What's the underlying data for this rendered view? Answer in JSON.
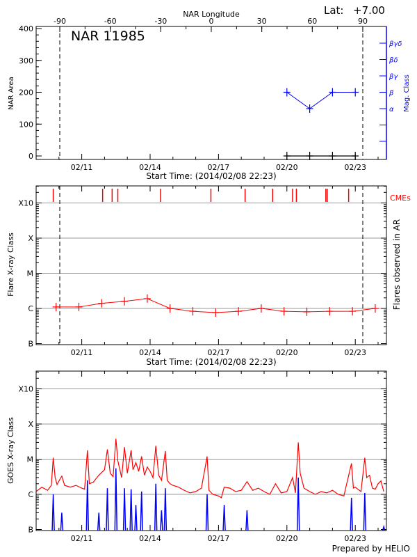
{
  "header": {
    "lat_label": "Lat:",
    "lat_value": "+7.00",
    "footer": "Prepared by HELIO"
  },
  "colors": {
    "area": "#000000",
    "mag_class": "#0000ff",
    "flares": "#ff0000",
    "cme": "#ff0000",
    "goes_long": "#ff0000",
    "goes_short": "#0000ff",
    "grid": "#999999"
  },
  "chart_data": [
    {
      "type": "line",
      "title": "NAR 11985",
      "top_axis_label": "NAR Longitude",
      "top_ticks": [
        -90,
        -60,
        -30,
        0,
        30,
        60,
        90
      ],
      "xlabel": "Start Time: (2014/02/08 22:23)",
      "x_ticks": [
        "02/11",
        "02/14",
        "02/17",
        "02/20",
        "02/23"
      ],
      "xlim": [
        "02/09 00:00",
        "02/24 06:30"
      ],
      "limb_markers_longitude": [
        -90,
        90
      ],
      "ylabel": "NAR Area",
      "ylim": [
        -11,
        406
      ],
      "y_ticks": [
        0,
        100,
        200,
        300,
        400
      ],
      "y2label": "Mag. Class",
      "y2_ticks": [
        "",
        "",
        "α",
        "β",
        "βγ",
        "βδ",
        "βγδ"
      ],
      "series": [
        {
          "name": "NAR Area",
          "x": [
            "02/20 00:00",
            "02/21 00:00",
            "02/22 00:00",
            "02/23 00:00"
          ],
          "values": [
            0,
            0,
            0,
            0
          ]
        },
        {
          "name": "Mag. Class",
          "x": [
            "02/20 00:00",
            "02/21 00:00",
            "02/22 00:00",
            "02/23 00:00"
          ],
          "values": [
            "β",
            "α",
            "β",
            "β"
          ]
        }
      ]
    },
    {
      "type": "line",
      "xlabel": "Start Time: (2014/02/08 22:23)",
      "x_ticks": [
        "02/11",
        "02/14",
        "02/17",
        "02/20",
        "02/23"
      ],
      "ylabel": "Flare X-ray Class",
      "y2label": "Flares observed in AR",
      "y_scale": "log",
      "y_ticks": [
        "B",
        "C",
        "M",
        "X",
        "X10"
      ],
      "grid": true,
      "cme_label": "CMEs",
      "cmes": [
        "02/09 18:00",
        "02/11 22:00",
        "02/12 08:00",
        "02/12 14:00",
        "02/14 11:00",
        "02/16 16:00",
        "02/18 04:00",
        "02/19 09:00",
        "02/20 06:00",
        "02/20 10:00",
        "02/21 17:00",
        "02/21 18:30",
        "02/22 17:00"
      ],
      "flares": {
        "x": [
          "02/09 21:00",
          "02/10 21:00",
          "02/11 21:00",
          "02/12 21:00",
          "02/13 21:00",
          "02/14 21:00",
          "02/15 21:00",
          "02/16 21:00",
          "02/17 21:00",
          "02/18 21:00",
          "02/19 21:00",
          "02/20 21:00",
          "02/21 21:00",
          "02/22 21:00",
          "02/23 21:00"
        ],
        "values": [
          "C1.1",
          "C1.1",
          "C1.4",
          "C1.6",
          "C1.9",
          "C1.0",
          "B8.3",
          "B7.6",
          "B8.3",
          "C1.0",
          "B8.3",
          "B8.0",
          "B8.3",
          "B8.3",
          "C1.0"
        ]
      }
    },
    {
      "type": "line",
      "x_ticks": [
        "02/11",
        "02/14",
        "02/17",
        "02/20",
        "02/23"
      ],
      "ylabel": "GOES X-ray Class",
      "y_scale": "log",
      "y_ticks": [
        "B",
        "C",
        "M",
        "X",
        "X10"
      ],
      "grid": true,
      "units": "flux in C-class units (1 = C1.0)",
      "series": [
        {
          "color": "#ff0000",
          "points": [
            [
              "02/09 00:00",
              1.2
            ],
            [
              "02/09 06:00",
              1.6
            ],
            [
              "02/09 12:00",
              1.3
            ],
            [
              "02/09 16:00",
              1.8
            ],
            [
              "02/09 18:00",
              11
            ],
            [
              "02/09 20:00",
              3.0
            ],
            [
              "02/09 22:00",
              1.9
            ],
            [
              "02/10 00:00",
              2.4
            ],
            [
              "02/10 03:00",
              3.3
            ],
            [
              "02/10 06:00",
              1.8
            ],
            [
              "02/10 12:00",
              1.6
            ],
            [
              "02/10 18:00",
              1.8
            ],
            [
              "02/11 00:00",
              1.5
            ],
            [
              "02/11 03:00",
              1.4
            ],
            [
              "02/11 06:00",
              18
            ],
            [
              "02/11 08:00",
              2.0
            ],
            [
              "02/11 12:00",
              2.2
            ],
            [
              "02/11 18:00",
              3.5
            ],
            [
              "02/12 00:00",
              5.0
            ],
            [
              "02/12 03:00",
              19
            ],
            [
              "02/12 06:00",
              4.0
            ],
            [
              "02/12 09:00",
              3.2
            ],
            [
              "02/12 12:00",
              38
            ],
            [
              "02/12 14:00",
              9.0
            ],
            [
              "02/12 18:00",
              3.0
            ],
            [
              "02/12 21:00",
              22
            ],
            [
              "02/13 00:00",
              4.0
            ],
            [
              "02/13 04:00",
              18
            ],
            [
              "02/13 06:00",
              5.0
            ],
            [
              "02/13 09:00",
              8.0
            ],
            [
              "02/13 12:00",
              4.5
            ],
            [
              "02/13 15:00",
              12
            ],
            [
              "02/13 18:00",
              3.5
            ],
            [
              "02/13 21:00",
              6.0
            ],
            [
              "02/14 00:00",
              4.5
            ],
            [
              "02/14 03:00",
              3.0
            ],
            [
              "02/14 06:00",
              24
            ],
            [
              "02/14 09:00",
              3.5
            ],
            [
              "02/14 12:00",
              2.5
            ],
            [
              "02/14 16:00",
              17
            ],
            [
              "02/14 18:00",
              2.5
            ],
            [
              "02/14 21:00",
              2.0
            ],
            [
              "02/15 00:00",
              1.8
            ],
            [
              "02/15 06:00",
              1.6
            ],
            [
              "02/15 12:00",
              1.3
            ],
            [
              "02/15 18:00",
              1.1
            ],
            [
              "02/16 00:00",
              1.2
            ],
            [
              "02/16 06:00",
              1.5
            ],
            [
              "02/16 12:00",
              12
            ],
            [
              "02/16 14:00",
              1.3
            ],
            [
              "02/16 18:00",
              1.0
            ],
            [
              "02/17 00:00",
              0.9
            ],
            [
              "02/17 03:00",
              0.8
            ],
            [
              "02/17 06:00",
              1.6
            ],
            [
              "02/17 12:00",
              1.5
            ],
            [
              "02/17 18:00",
              1.2
            ],
            [
              "02/18 00:00",
              1.3
            ],
            [
              "02/18 06:00",
              2.3
            ],
            [
              "02/18 12:00",
              1.3
            ],
            [
              "02/18 18:00",
              1.5
            ],
            [
              "02/19 00:00",
              1.2
            ],
            [
              "02/19 06:00",
              1.0
            ],
            [
              "02/19 12:00",
              2.0
            ],
            [
              "02/19 18:00",
              1.1
            ],
            [
              "02/20 00:00",
              1.2
            ],
            [
              "02/20 06:00",
              3.0
            ],
            [
              "02/20 09:00",
              1.1
            ],
            [
              "02/20 12:00",
              30
            ],
            [
              "02/20 14:00",
              4.0
            ],
            [
              "02/20 18:00",
              1.5
            ],
            [
              "02/21 00:00",
              1.2
            ],
            [
              "02/21 06:00",
              1.0
            ],
            [
              "02/21 12:00",
              1.2
            ],
            [
              "02/21 18:00",
              1.1
            ],
            [
              "02/22 00:00",
              1.3
            ],
            [
              "02/22 06:00",
              1.0
            ],
            [
              "02/22 12:00",
              0.9
            ],
            [
              "02/22 20:00",
              7.6
            ],
            [
              "02/22 22:00",
              1.5
            ],
            [
              "02/23 00:00",
              1.6
            ],
            [
              "02/23 06:00",
              1.2
            ],
            [
              "02/23 10:00",
              11
            ],
            [
              "02/23 12:00",
              3.0
            ],
            [
              "02/23 15:00",
              3.5
            ],
            [
              "02/23 18:00",
              1.5
            ],
            [
              "02/23 21:00",
              1.4
            ],
            [
              "02/24 00:00",
              2.0
            ],
            [
              "02/24 03:00",
              2.4
            ],
            [
              "02/24 06:00",
              1.2
            ]
          ]
        },
        {
          "color": "#0000ff",
          "spikes": [
            [
              "02/09 18:00",
              1.0
            ],
            [
              "02/10 03:00",
              0.3
            ],
            [
              "02/11 06:00",
              2.5
            ],
            [
              "02/11 18:00",
              0.3
            ],
            [
              "02/12 03:00",
              1.5
            ],
            [
              "02/12 12:00",
              5.5
            ],
            [
              "02/12 21:00",
              1.5
            ],
            [
              "02/13 04:00",
              1.4
            ],
            [
              "02/13 09:00",
              0.5
            ],
            [
              "02/13 15:00",
              1.2
            ],
            [
              "02/14 06:00",
              2.0
            ],
            [
              "02/14 12:00",
              0.35
            ],
            [
              "02/14 16:00",
              1.5
            ],
            [
              "02/16 12:00",
              1.0
            ],
            [
              "02/17 06:00",
              0.5
            ],
            [
              "02/18 06:00",
              0.35
            ],
            [
              "02/20 12:00",
              3.0
            ],
            [
              "02/22 20:00",
              0.8
            ],
            [
              "02/23 10:00",
              1.1
            ],
            [
              "02/24 06:00",
              0.12
            ]
          ]
        }
      ]
    }
  ]
}
